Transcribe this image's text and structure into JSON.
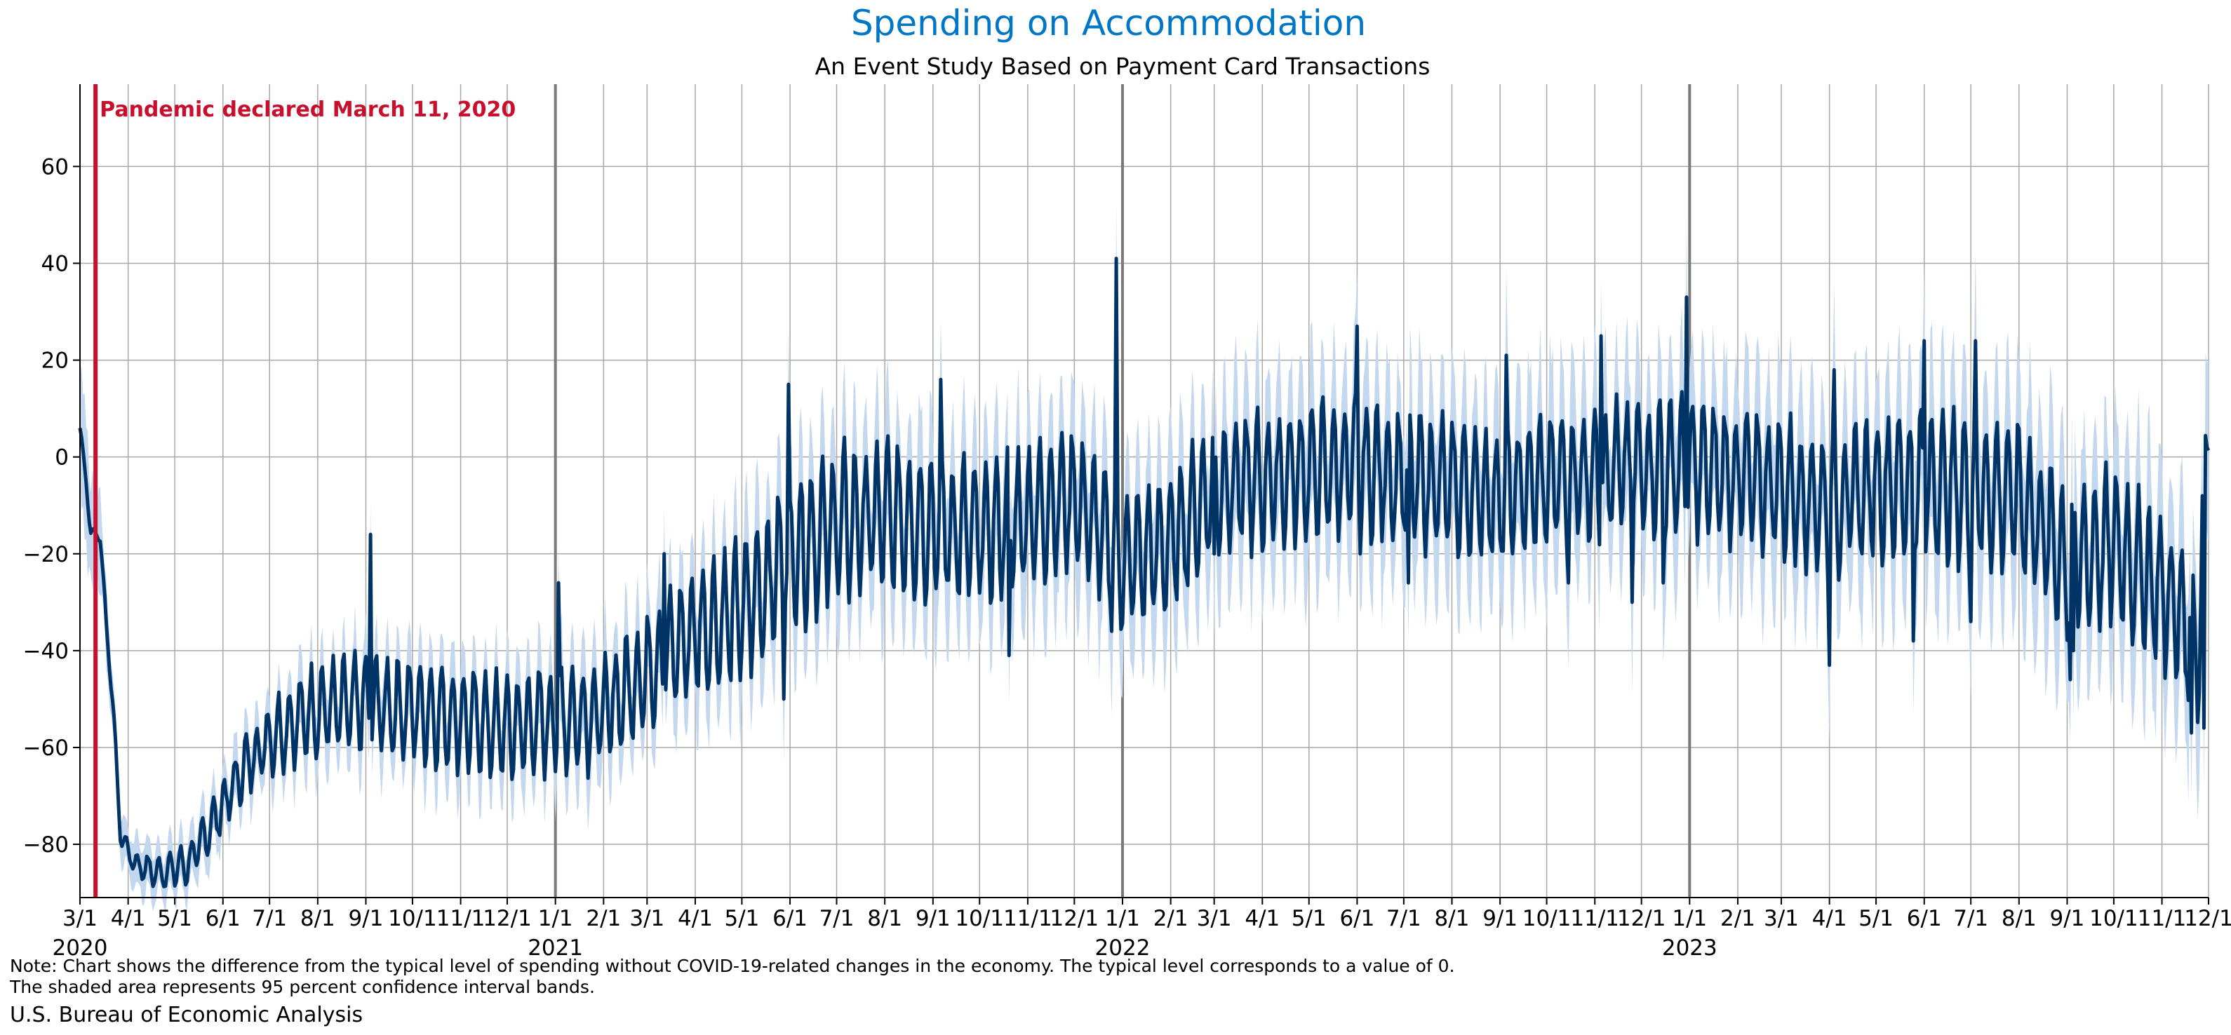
{
  "chart_data": {
    "type": "line",
    "title": "Spending on Accommodation",
    "subtitle": "An Event Study Based on Payment Card Transactions",
    "xlabel": "",
    "ylabel": "",
    "x_start": "2020-03-01",
    "x_end": "2023-12-01",
    "ylim": [
      -91,
      77
    ],
    "yticks": [
      -80,
      -60,
      -40,
      -20,
      0,
      20,
      40,
      60
    ],
    "ytick_labels": [
      "−80",
      "−60",
      "−40",
      "−20",
      "0",
      "20",
      "40",
      "60"
    ],
    "month_ticks": [
      "3/1",
      "4/1",
      "5/1",
      "6/1",
      "7/1",
      "8/1",
      "9/1",
      "10/1",
      "11/1",
      "12/1",
      "1/1",
      "2/1",
      "3/1",
      "4/1",
      "5/1",
      "6/1",
      "7/1",
      "8/1",
      "9/1",
      "10/1",
      "11/1",
      "12/1",
      "1/1",
      "2/1",
      "3/1",
      "4/1",
      "5/1",
      "6/1",
      "7/1",
      "8/1",
      "9/1",
      "10/1",
      "11/1",
      "12/1",
      "1/1",
      "2/1",
      "3/1",
      "4/1",
      "5/1",
      "6/1",
      "7/1",
      "8/1",
      "9/1",
      "10/1",
      "11/1",
      "12/1"
    ],
    "year_labels": [
      {
        "month_index": 0,
        "label": "2020"
      },
      {
        "month_index": 10,
        "label": "2021"
      },
      {
        "month_index": 22,
        "label": "2022"
      },
      {
        "month_index": 34,
        "label": "2023"
      }
    ],
    "year_boundaries": [
      "2021-01-01",
      "2022-01-01",
      "2023-01-01"
    ],
    "grid": true,
    "annotation": {
      "date": "2020-03-11",
      "label": "Pandemic declared March 11, 2020"
    },
    "series": [
      {
        "name": "",
        "anchors": [
          {
            "x": "2020-03-01",
            "y": 6
          },
          {
            "x": "2020-03-05",
            "y": -5
          },
          {
            "x": "2020-03-08",
            "y": -16
          },
          {
            "x": "2020-03-14",
            "y": -16
          },
          {
            "x": "2020-03-18",
            "y": -35
          },
          {
            "x": "2020-03-22",
            "y": -50
          },
          {
            "x": "2020-03-27",
            "y": -78
          },
          {
            "x": "2020-04-05",
            "y": -84
          },
          {
            "x": "2020-04-20",
            "y": -86
          },
          {
            "x": "2020-05-10",
            "y": -84
          },
          {
            "x": "2020-06-01",
            "y": -72
          },
          {
            "x": "2020-06-15",
            "y": -64
          },
          {
            "x": "2020-07-01",
            "y": -58
          },
          {
            "x": "2020-08-01",
            "y": -52
          },
          {
            "x": "2020-09-01",
            "y": -51
          },
          {
            "x": "2020-10-01",
            "y": -52
          },
          {
            "x": "2020-11-01",
            "y": -54
          },
          {
            "x": "2020-12-01",
            "y": -56
          },
          {
            "x": "2021-01-01",
            "y": -54
          },
          {
            "x": "2021-02-01",
            "y": -53
          },
          {
            "x": "2021-03-01",
            "y": -44
          },
          {
            "x": "2021-04-01",
            "y": -36
          },
          {
            "x": "2021-05-01",
            "y": -32
          },
          {
            "x": "2021-06-01",
            "y": -20
          },
          {
            "x": "2021-07-01",
            "y": -14
          },
          {
            "x": "2021-08-01",
            "y": -12
          },
          {
            "x": "2021-09-01",
            "y": -14
          },
          {
            "x": "2021-10-01",
            "y": -16
          },
          {
            "x": "2021-11-01",
            "y": -12
          },
          {
            "x": "2021-12-01",
            "y": -8
          },
          {
            "x": "2022-01-01",
            "y": -22
          },
          {
            "x": "2022-02-01",
            "y": -18
          },
          {
            "x": "2022-03-01",
            "y": -6
          },
          {
            "x": "2022-04-01",
            "y": -5
          },
          {
            "x": "2022-05-01",
            "y": -3
          },
          {
            "x": "2022-06-01",
            "y": -2
          },
          {
            "x": "2022-07-01",
            "y": -4
          },
          {
            "x": "2022-08-01",
            "y": -6
          },
          {
            "x": "2022-09-01",
            "y": -8
          },
          {
            "x": "2022-10-01",
            "y": -5
          },
          {
            "x": "2022-11-01",
            "y": -3
          },
          {
            "x": "2022-12-01",
            "y": -2
          },
          {
            "x": "2023-01-01",
            "y": -2
          },
          {
            "x": "2023-02-01",
            "y": -4
          },
          {
            "x": "2023-03-01",
            "y": -6
          },
          {
            "x": "2023-04-01",
            "y": -10
          },
          {
            "x": "2023-05-01",
            "y": -6
          },
          {
            "x": "2023-06-01",
            "y": -5
          },
          {
            "x": "2023-07-01",
            "y": -7
          },
          {
            "x": "2023-08-01",
            "y": -8
          },
          {
            "x": "2023-09-01",
            "y": -22
          },
          {
            "x": "2023-10-01",
            "y": -18
          },
          {
            "x": "2023-11-01",
            "y": -28
          },
          {
            "x": "2023-11-25",
            "y": -38
          },
          {
            "x": "2023-12-01",
            "y": 18
          }
        ],
        "weekly_amplitude": [
          {
            "x": "2020-03-01",
            "amp": 1
          },
          {
            "x": "2020-04-01",
            "amp": 2
          },
          {
            "x": "2020-06-01",
            "amp": 5
          },
          {
            "x": "2020-08-01",
            "amp": 9
          },
          {
            "x": "2021-03-01",
            "amp": 11
          },
          {
            "x": "2021-06-01",
            "amp": 15
          },
          {
            "x": "2022-01-01",
            "amp": 13
          },
          {
            "x": "2023-01-01",
            "amp": 13
          },
          {
            "x": "2023-12-01",
            "amp": 15
          }
        ],
        "spikes": [
          {
            "x": "2020-09-04",
            "y": -16
          },
          {
            "x": "2021-01-03",
            "y": -26
          },
          {
            "x": "2021-03-12",
            "y": -20
          },
          {
            "x": "2021-05-28",
            "y": -50
          },
          {
            "x": "2021-05-31",
            "y": 15
          },
          {
            "x": "2021-09-06",
            "y": 16
          },
          {
            "x": "2021-10-20",
            "y": -41
          },
          {
            "x": "2021-12-25",
            "y": -36
          },
          {
            "x": "2021-12-28",
            "y": 41
          },
          {
            "x": "2022-03-01",
            "y": -20
          },
          {
            "x": "2022-06-01",
            "y": 27
          },
          {
            "x": "2022-06-03",
            "y": -20
          },
          {
            "x": "2022-07-04",
            "y": -26
          },
          {
            "x": "2022-09-05",
            "y": 21
          },
          {
            "x": "2022-10-15",
            "y": -26
          },
          {
            "x": "2022-11-05",
            "y": 25
          },
          {
            "x": "2022-11-25",
            "y": -30
          },
          {
            "x": "2022-12-15",
            "y": -26
          },
          {
            "x": "2022-12-30",
            "y": 33
          },
          {
            "x": "2023-04-01",
            "y": -43
          },
          {
            "x": "2023-04-04",
            "y": 18
          },
          {
            "x": "2023-05-25",
            "y": -38
          },
          {
            "x": "2023-06-01",
            "y": 24
          },
          {
            "x": "2023-07-01",
            "y": -34
          },
          {
            "x": "2023-07-04",
            "y": 24
          },
          {
            "x": "2023-09-03",
            "y": -46
          },
          {
            "x": "2023-09-05",
            "y": -40
          },
          {
            "x": "2023-11-20",
            "y": -57
          },
          {
            "x": "2023-11-28",
            "y": -56
          }
        ],
        "confidence_band": "95 percent",
        "ci_halfwidth": [
          {
            "x": "2020-03-01",
            "w": 13
          },
          {
            "x": "2020-03-25",
            "w": 4
          },
          {
            "x": "2020-06-01",
            "w": 5
          },
          {
            "x": "2020-09-01",
            "w": 7
          },
          {
            "x": "2021-03-01",
            "w": 9
          },
          {
            "x": "2021-06-01",
            "w": 12
          },
          {
            "x": "2022-01-01",
            "w": 13
          },
          {
            "x": "2023-01-01",
            "w": 14
          },
          {
            "x": "2023-12-01",
            "w": 16
          }
        ]
      }
    ]
  },
  "colors": {
    "title": "#0076c6",
    "line": "#003366",
    "band": "#c3d7ee",
    "annotation": "#c8102e",
    "grid": "#a8a8a8",
    "year_line": "#7a7a7a"
  },
  "notes": {
    "line1": "Note: Chart shows the difference from the typical level of spending without COVID-19-related changes in the economy. The typical level corresponds to a value of 0.",
    "line2": "The shaded area represents 95 percent confidence interval bands.",
    "source": "U.S. Bureau of Economic Analysis"
  }
}
